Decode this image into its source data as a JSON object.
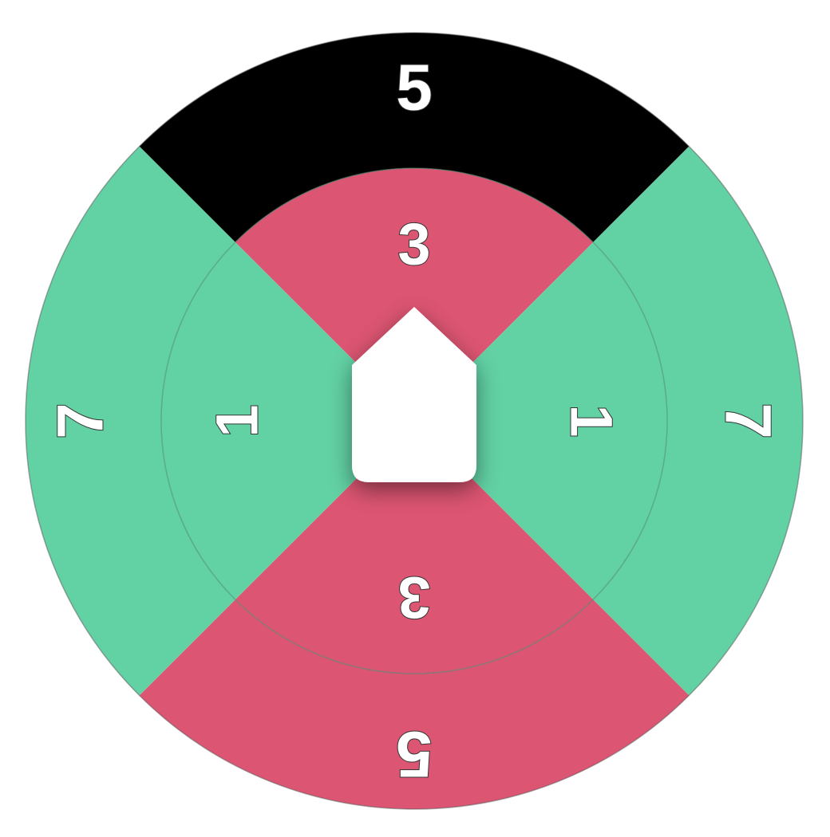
{
  "wheel": {
    "colors": {
      "green": "#62d1a4",
      "red": "#dc5572",
      "black": "#000000",
      "text": "#ffffff",
      "pointer": "#ffffff",
      "ring_line": "#4a8a72"
    },
    "outer_ring": [
      {
        "id": "top",
        "label": "5",
        "color": "#000000",
        "selected": true
      },
      {
        "id": "right",
        "label": "7",
        "color": "#62d1a4",
        "selected": false
      },
      {
        "id": "bottom",
        "label": "5",
        "color": "#dc5572",
        "selected": false
      },
      {
        "id": "left",
        "label": "7",
        "color": "#62d1a4",
        "selected": false
      }
    ],
    "inner_ring": [
      {
        "id": "top",
        "label": "3",
        "color": "#dc5572"
      },
      {
        "id": "right",
        "label": "1",
        "color": "#62d1a4"
      },
      {
        "id": "bottom",
        "label": "3",
        "color": "#dc5572"
      },
      {
        "id": "left",
        "label": "1",
        "color": "#62d1a4"
      }
    ],
    "pointer_icon": "arrow-up-pointer-icon"
  }
}
